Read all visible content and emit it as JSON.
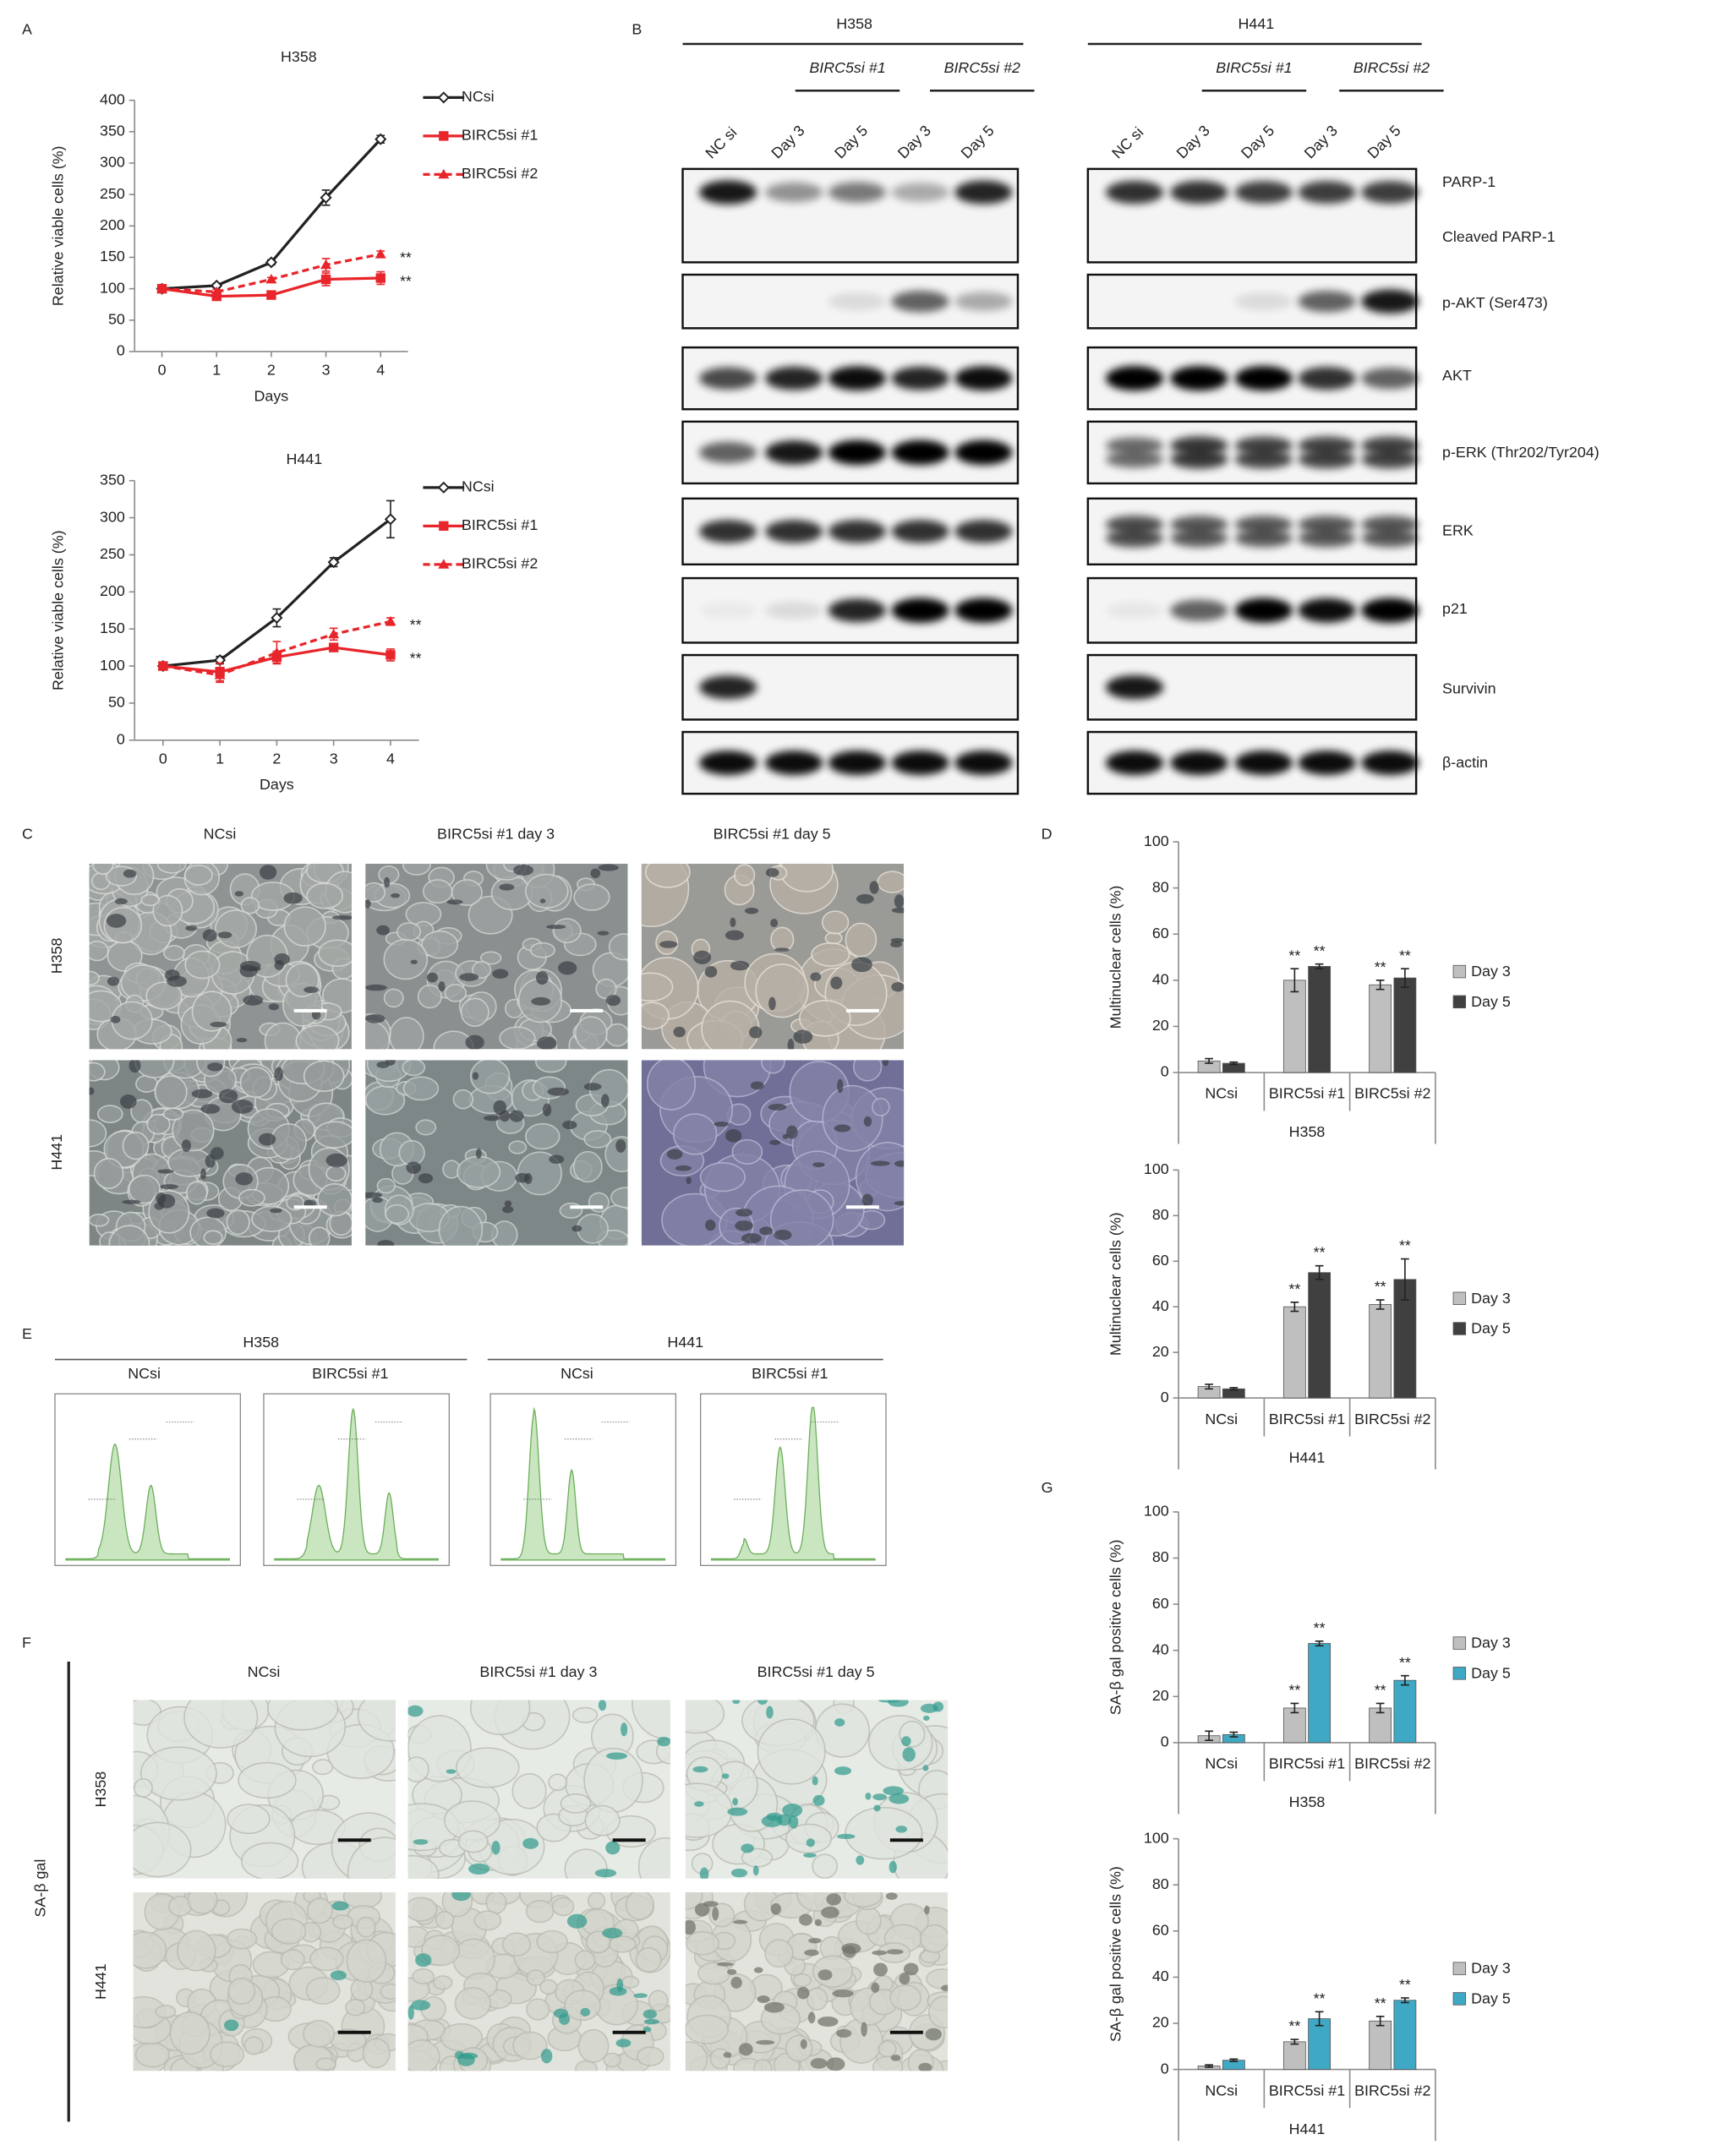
{
  "panel_labels": [
    "A",
    "B",
    "C",
    "D",
    "E",
    "F",
    "G"
  ],
  "chart_data": [
    {
      "type": "line",
      "title": "H358",
      "xlabel": "Days",
      "ylabel": "Relative viable cells (%)",
      "x": [
        0,
        1,
        2,
        3,
        4
      ],
      "xlim": [
        -0.5,
        4.5
      ],
      "xticks": [
        0,
        1,
        2,
        3,
        4
      ],
      "ylim": [
        0,
        400
      ],
      "yticks": [
        0,
        50,
        100,
        150,
        200,
        250,
        300,
        350,
        400
      ],
      "series": [
        {
          "name": "NCsi",
          "color": "#222222",
          "dash": "none",
          "marker": "diamond",
          "values": [
            100,
            105,
            142,
            245,
            338
          ],
          "errors": [
            3,
            3,
            4,
            12,
            6
          ]
        },
        {
          "name": "BIRC5si #1",
          "color": "#e8252a",
          "dash": "none",
          "marker": "square",
          "values": [
            100,
            88,
            90,
            115,
            117
          ],
          "errors": [
            4,
            4,
            4,
            10,
            10
          ],
          "significance": "**"
        },
        {
          "name": "BIRC5si #2",
          "color": "#e8252a",
          "dash": "dashed",
          "marker": "triangle",
          "values": [
            100,
            95,
            115,
            138,
            155
          ],
          "errors": [
            3,
            4,
            3,
            10,
            5
          ],
          "significance": "**"
        }
      ]
    },
    {
      "type": "line",
      "title": "H441",
      "xlabel": "Days",
      "ylabel": "Relative viable cells (%)",
      "x": [
        0,
        1,
        2,
        3,
        4
      ],
      "xlim": [
        -0.5,
        4.5
      ],
      "xticks": [
        0,
        1,
        2,
        3,
        4
      ],
      "ylim": [
        0,
        350
      ],
      "yticks": [
        0,
        50,
        100,
        150,
        200,
        250,
        300,
        350
      ],
      "series": [
        {
          "name": "NCsi",
          "color": "#222222",
          "dash": "none",
          "marker": "diamond",
          "values": [
            100,
            108,
            165,
            240,
            298
          ],
          "errors": [
            5,
            5,
            12,
            6,
            25
          ]
        },
        {
          "name": "BIRC5si #1",
          "color": "#e8252a",
          "dash": "none",
          "marker": "square",
          "values": [
            100,
            92,
            112,
            125,
            115
          ],
          "errors": [
            4,
            12,
            8,
            5,
            8
          ],
          "significance": "**"
        },
        {
          "name": "BIRC5si #2",
          "color": "#e8252a",
          "dash": "dashed",
          "marker": "triangle",
          "values": [
            100,
            88,
            118,
            143,
            160
          ],
          "errors": [
            3,
            10,
            15,
            8,
            5
          ],
          "significance": "**"
        }
      ]
    },
    {
      "type": "bar",
      "ylabel": "Multinuclear cells (%)",
      "group_label": "H358",
      "categories": [
        "NCsi",
        "BIRC5si #1",
        "BIRC5si #2"
      ],
      "ylim": [
        0,
        100
      ],
      "yticks": [
        0,
        20,
        40,
        60,
        80,
        100
      ],
      "series": [
        {
          "name": "Day 3",
          "color": "#bfbfbf",
          "values": [
            5,
            40,
            38
          ],
          "errors": [
            1,
            5,
            2
          ],
          "significance": [
            null,
            "**",
            "**"
          ]
        },
        {
          "name": "Day 5",
          "color": "#404040",
          "values": [
            4,
            46,
            41
          ],
          "errors": [
            0.5,
            1,
            4
          ],
          "significance": [
            null,
            "**",
            "**"
          ]
        }
      ]
    },
    {
      "type": "bar",
      "ylabel": "Multinuclear cells (%)",
      "group_label": "H441",
      "categories": [
        "NCsi",
        "BIRC5si #1",
        "BIRC5si #2"
      ],
      "ylim": [
        0,
        100
      ],
      "yticks": [
        0,
        20,
        40,
        60,
        80,
        100
      ],
      "series": [
        {
          "name": "Day 3",
          "color": "#bfbfbf",
          "values": [
            5,
            40,
            41
          ],
          "errors": [
            1,
            2,
            2
          ],
          "significance": [
            null,
            "**",
            "**"
          ]
        },
        {
          "name": "Day 5",
          "color": "#404040",
          "values": [
            4,
            55,
            52
          ],
          "errors": [
            0.5,
            3,
            9
          ],
          "significance": [
            null,
            "**",
            "**"
          ]
        }
      ]
    },
    {
      "type": "bar",
      "ylabel": "SA-β gal positive cells (%)",
      "group_label": "H358",
      "categories": [
        "NCsi",
        "BIRC5si #1",
        "BIRC5si #2"
      ],
      "ylim": [
        0,
        100
      ],
      "yticks": [
        0,
        20,
        40,
        60,
        80,
        100
      ],
      "series": [
        {
          "name": "Day 3",
          "color": "#bfbfbf",
          "values": [
            3,
            15,
            15
          ],
          "errors": [
            2,
            2,
            2
          ],
          "significance": [
            null,
            "**",
            "**"
          ]
        },
        {
          "name": "Day 5",
          "color": "#3fa8c4",
          "values": [
            3.5,
            43,
            27
          ],
          "errors": [
            1,
            1,
            2
          ],
          "significance": [
            null,
            "**",
            "**"
          ]
        }
      ]
    },
    {
      "type": "bar",
      "ylabel": "SA-β gal positive cells (%)",
      "group_label": "H441",
      "categories": [
        "NCsi",
        "BIRC5si #1",
        "BIRC5si #2"
      ],
      "ylim": [
        0,
        100
      ],
      "yticks": [
        0,
        20,
        40,
        60,
        80,
        100
      ],
      "series": [
        {
          "name": "Day 3",
          "color": "#bfbfbf",
          "values": [
            1.5,
            12,
            21
          ],
          "errors": [
            0.5,
            1,
            2
          ],
          "significance": [
            null,
            "**",
            "**"
          ]
        },
        {
          "name": "Day 5",
          "color": "#3fa8c4",
          "values": [
            4,
            22,
            30
          ],
          "errors": [
            0.5,
            3,
            1
          ],
          "significance": [
            null,
            "**",
            "**"
          ]
        }
      ]
    }
  ],
  "blot": {
    "cell_lines": [
      "H358",
      "H441"
    ],
    "groups": [
      "BIRC5si #1",
      "BIRC5si #2"
    ],
    "lanes": [
      "NC si",
      "Day 3",
      "Day 5",
      "Day 3",
      "Day 5"
    ],
    "labels": [
      "PARP-1",
      "Cleaved PARP-1",
      "p-AKT (Ser473)",
      "AKT",
      "p-ERK (Thr202/Tyr204)",
      "ERK",
      "p21",
      "Survivin",
      "β-actin"
    ]
  },
  "micrographs_c": {
    "columns": [
      "NCsi",
      "BIRC5si #1 day 3",
      "BIRC5si #1 day 5"
    ],
    "rows": [
      "H358",
      "H441"
    ]
  },
  "flow_e": {
    "cell_lines": [
      "H358",
      "H441"
    ],
    "conditions": [
      "NCsi",
      "BIRC5si #1"
    ]
  },
  "micrographs_f": {
    "stain": "SA-β gal",
    "columns": [
      "NCsi",
      "BIRC5si #1 day 3",
      "BIRC5si #1 day 5"
    ],
    "rows": [
      "H358",
      "H441"
    ]
  }
}
